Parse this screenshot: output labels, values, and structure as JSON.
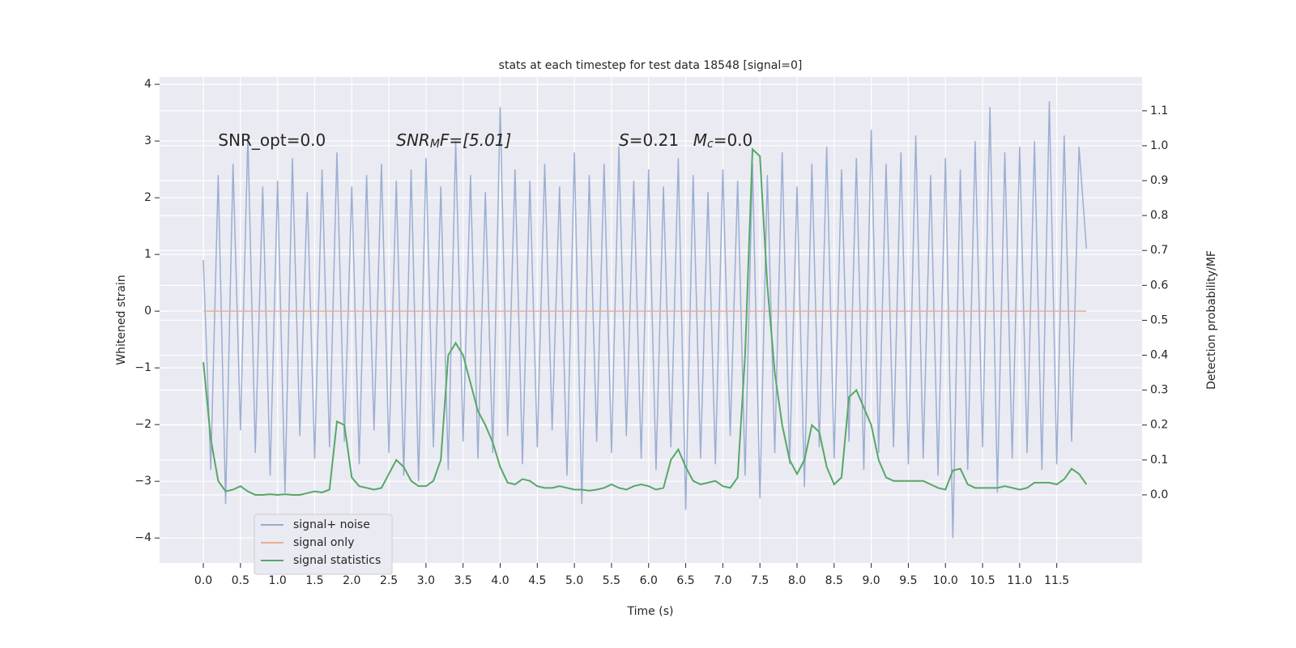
{
  "chart_data": {
    "type": "line",
    "title": "stats at each timestep for test data 18548 [signal=0]",
    "x_label": "Time (s)",
    "y_label": "Whitened strain",
    "y2_label": "Detection probability/MF",
    "annotations": [
      {
        "x": 0.2,
        "y": 3,
        "parts": [
          {
            "text": "SNR_opt=0.0"
          }
        ]
      },
      {
        "x": 2.6,
        "y": 3,
        "parts": [
          {
            "text": "SNR",
            "italic": true
          },
          {
            "text": "M",
            "italic": true,
            "sub": true
          },
          {
            "text": "F=[5.01]",
            "italic": true
          }
        ]
      },
      {
        "x": 5.6,
        "y": 3,
        "parts": [
          {
            "text": "S",
            "italic": true
          },
          {
            "text": "=0.21"
          }
        ]
      },
      {
        "x": 6.6,
        "y": 3,
        "parts": [
          {
            "text": "M",
            "italic": true
          },
          {
            "text": "c",
            "italic": true,
            "sub": true
          },
          {
            "text": "=0.0"
          }
        ]
      }
    ],
    "grid": true,
    "legend": "lower left",
    "xlim": [
      -0.59,
      12.65
    ],
    "ylim": [
      -4.44,
      4.13
    ],
    "y2lim": [
      -0.195,
      1.197
    ],
    "xticks": [
      {
        "value": 0,
        "label": "0.0"
      },
      {
        "value": 0.5,
        "label": "0.5"
      },
      {
        "value": 1,
        "label": "1.0"
      },
      {
        "value": 1.5,
        "label": "1.5"
      },
      {
        "value": 2,
        "label": "2.0"
      },
      {
        "value": 2.5,
        "label": "2.5"
      },
      {
        "value": 3,
        "label": "3.0"
      },
      {
        "value": 3.5,
        "label": "3.5"
      },
      {
        "value": 4,
        "label": "4.0"
      },
      {
        "value": 4.5,
        "label": "4.5"
      },
      {
        "value": 5,
        "label": "5.0"
      },
      {
        "value": 5.5,
        "label": "5.5"
      },
      {
        "value": 6,
        "label": "6.0"
      },
      {
        "value": 6.5,
        "label": "6.5"
      },
      {
        "value": 7,
        "label": "7.0"
      },
      {
        "value": 7.5,
        "label": "7.5"
      },
      {
        "value": 8,
        "label": "8.0"
      },
      {
        "value": 8.5,
        "label": "8.5"
      },
      {
        "value": 9,
        "label": "9.0"
      },
      {
        "value": 9.5,
        "label": "9.5"
      },
      {
        "value": 10,
        "label": "10.0"
      },
      {
        "value": 10.5,
        "label": "10.5"
      },
      {
        "value": 11,
        "label": "11.0"
      },
      {
        "value": 11.5,
        "label": "11.5"
      }
    ],
    "yticks": [
      {
        "value": -4,
        "label": "−4"
      },
      {
        "value": -3,
        "label": "−3"
      },
      {
        "value": -2,
        "label": "−2"
      },
      {
        "value": -1,
        "label": "−1"
      },
      0,
      1,
      2,
      3,
      4
    ],
    "y2ticks": [
      {
        "value": 0,
        "label": "0.0"
      },
      {
        "value": 0.1,
        "label": "0.1"
      },
      {
        "value": 0.2,
        "label": "0.2"
      },
      {
        "value": 0.3,
        "label": "0.3"
      },
      {
        "value": 0.4,
        "label": "0.4"
      },
      {
        "value": 0.5,
        "label": "0.5"
      },
      {
        "value": 0.6,
        "label": "0.6"
      },
      {
        "value": 0.7,
        "label": "0.7"
      },
      {
        "value": 0.8,
        "label": "0.8"
      },
      {
        "value": 0.9,
        "label": "0.9"
      },
      {
        "value": 1,
        "label": "1.0"
      },
      {
        "value": 1.1,
        "label": "1.1"
      }
    ],
    "x": [
      0,
      0.1,
      0.2,
      0.3,
      0.4,
      0.5,
      0.6,
      0.7,
      0.8,
      0.9,
      1,
      1.1,
      1.2,
      1.3,
      1.4,
      1.5,
      1.6,
      1.7,
      1.8,
      1.9,
      2,
      2.1,
      2.2,
      2.3,
      2.4,
      2.5,
      2.6,
      2.7,
      2.8,
      2.9,
      3,
      3.1,
      3.2,
      3.3,
      3.4,
      3.5,
      3.6,
      3.7,
      3.8,
      3.9,
      4,
      4.1,
      4.2,
      4.3,
      4.4,
      4.5,
      4.6,
      4.7,
      4.8,
      4.9,
      5,
      5.1,
      5.2,
      5.3,
      5.4,
      5.5,
      5.6,
      5.7,
      5.8,
      5.9,
      6,
      6.1,
      6.2,
      6.3,
      6.4,
      6.5,
      6.6,
      6.7,
      6.8,
      6.9,
      7,
      7.1,
      7.2,
      7.3,
      7.4,
      7.5,
      7.6,
      7.7,
      7.8,
      7.9,
      8,
      8.1,
      8.2,
      8.3,
      8.4,
      8.5,
      8.6,
      8.7,
      8.8,
      8.9,
      9,
      9.1,
      9.2,
      9.3,
      9.4,
      9.5,
      9.6,
      9.7,
      9.8,
      9.9,
      10,
      10.1,
      10.2,
      10.3,
      10.4,
      10.5,
      10.6,
      10.7,
      10.8,
      10.9,
      11,
      11.1,
      11.2,
      11.3,
      11.4,
      11.5,
      11.6,
      11.7,
      11.8,
      11.9
    ],
    "series": [
      {
        "name": "signal+ noise",
        "color": "#98abd0",
        "values": [
          0.9,
          -2.8,
          2.4,
          -3.4,
          2.6,
          -2.1,
          3.1,
          -2.5,
          2.2,
          -2.9,
          2.3,
          -3.2,
          2.7,
          -2.2,
          2.1,
          -2.6,
          2.5,
          -2.4,
          2.8,
          -2.3,
          2.2,
          -2.7,
          2.4,
          -2.1,
          2.6,
          -2.5,
          2.3,
          -2.9,
          2.5,
          -3.0,
          2.7,
          -2.4,
          2.2,
          -2.8,
          3.0,
          -2.3,
          2.4,
          -2.6,
          2.1,
          -2.5,
          3.6,
          -2.2,
          2.5,
          -2.7,
          2.3,
          -2.4,
          2.6,
          -2.1,
          2.2,
          -2.9,
          2.8,
          -3.4,
          2.4,
          -2.3,
          2.6,
          -2.5,
          2.9,
          -2.2,
          2.3,
          -2.6,
          2.5,
          -2.8,
          2.2,
          -2.4,
          2.7,
          -3.5,
          2.4,
          -2.6,
          2.1,
          -2.7,
          2.5,
          -2.2,
          2.3,
          -2.9,
          2.6,
          -3.3,
          2.4,
          -2.5,
          2.8,
          -2.7,
          2.2,
          -3.1,
          2.6,
          -2.4,
          2.9,
          -2.6,
          2.5,
          -2.3,
          2.7,
          -2.8,
          3.2,
          -2.5,
          2.6,
          -2.4,
          2.8,
          -2.7,
          3.1,
          -2.6,
          2.4,
          -2.9,
          2.7,
          -4.0,
          2.5,
          -2.8,
          3.0,
          -2.4,
          3.6,
          -3.2,
          2.8,
          -2.6,
          2.9,
          -2.5,
          3.0,
          -2.8,
          3.7,
          -2.7,
          3.1,
          -2.3,
          2.9,
          1.1
        ]
      },
      {
        "name": "signal only",
        "color": "#e5ae94",
        "values": [
          0,
          0,
          0,
          0,
          0,
          0,
          0,
          0,
          0,
          0,
          0,
          0,
          0,
          0,
          0,
          0,
          0,
          0,
          0,
          0,
          0,
          0,
          0,
          0,
          0,
          0,
          0,
          0,
          0,
          0,
          0,
          0,
          0,
          0,
          0,
          0,
          0,
          0,
          0,
          0,
          0,
          0,
          0,
          0,
          0,
          0,
          0,
          0,
          0,
          0,
          0,
          0,
          0,
          0,
          0,
          0,
          0,
          0,
          0,
          0,
          0,
          0,
          0,
          0,
          0,
          0,
          0,
          0,
          0,
          0,
          0,
          0,
          0,
          0,
          0,
          0,
          0,
          0,
          0,
          0,
          0,
          0,
          0,
          0,
          0,
          0,
          0,
          0,
          0,
          0,
          0,
          0,
          0,
          0,
          0,
          0,
          0,
          0,
          0,
          0,
          0,
          0,
          0,
          0,
          0,
          0,
          0,
          0,
          0,
          0,
          0,
          0,
          0,
          0,
          0,
          0,
          0,
          0,
          0,
          0
        ]
      },
      {
        "name": "signal statistics",
        "color": "#55a868",
        "axis": "y2",
        "values": [
          0.38,
          0.16,
          0.04,
          0.01,
          0.015,
          0.025,
          0.01,
          0,
          0,
          0.002,
          0,
          0.002,
          0,
          0,
          0.005,
          0.01,
          0.007,
          0.015,
          0.21,
          0.2,
          0.05,
          0.025,
          0.02,
          0.015,
          0.02,
          0.06,
          0.1,
          0.08,
          0.04,
          0.025,
          0.025,
          0.04,
          0.1,
          0.4,
          0.435,
          0.4,
          0.32,
          0.24,
          0.2,
          0.15,
          0.08,
          0.035,
          0.03,
          0.045,
          0.04,
          0.025,
          0.02,
          0.02,
          0.025,
          0.02,
          0.015,
          0.015,
          0.012,
          0.015,
          0.02,
          0.03,
          0.02,
          0.015,
          0.025,
          0.03,
          0.025,
          0.015,
          0.02,
          0.1,
          0.13,
          0.08,
          0.04,
          0.03,
          0.035,
          0.04,
          0.025,
          0.02,
          0.05,
          0.4,
          0.99,
          0.97,
          0.6,
          0.35,
          0.2,
          0.1,
          0.06,
          0.1,
          0.2,
          0.18,
          0.08,
          0.03,
          0.05,
          0.28,
          0.3,
          0.25,
          0.2,
          0.1,
          0.05,
          0.04,
          0.04,
          0.04,
          0.04,
          0.04,
          0.03,
          0.02,
          0.015,
          0.07,
          0.075,
          0.03,
          0.02,
          0.02,
          0.02,
          0.02,
          0.025,
          0.02,
          0.015,
          0.02,
          0.035,
          0.035,
          0.035,
          0.03,
          0.045,
          0.075,
          0.06,
          0.03
        ]
      }
    ]
  }
}
